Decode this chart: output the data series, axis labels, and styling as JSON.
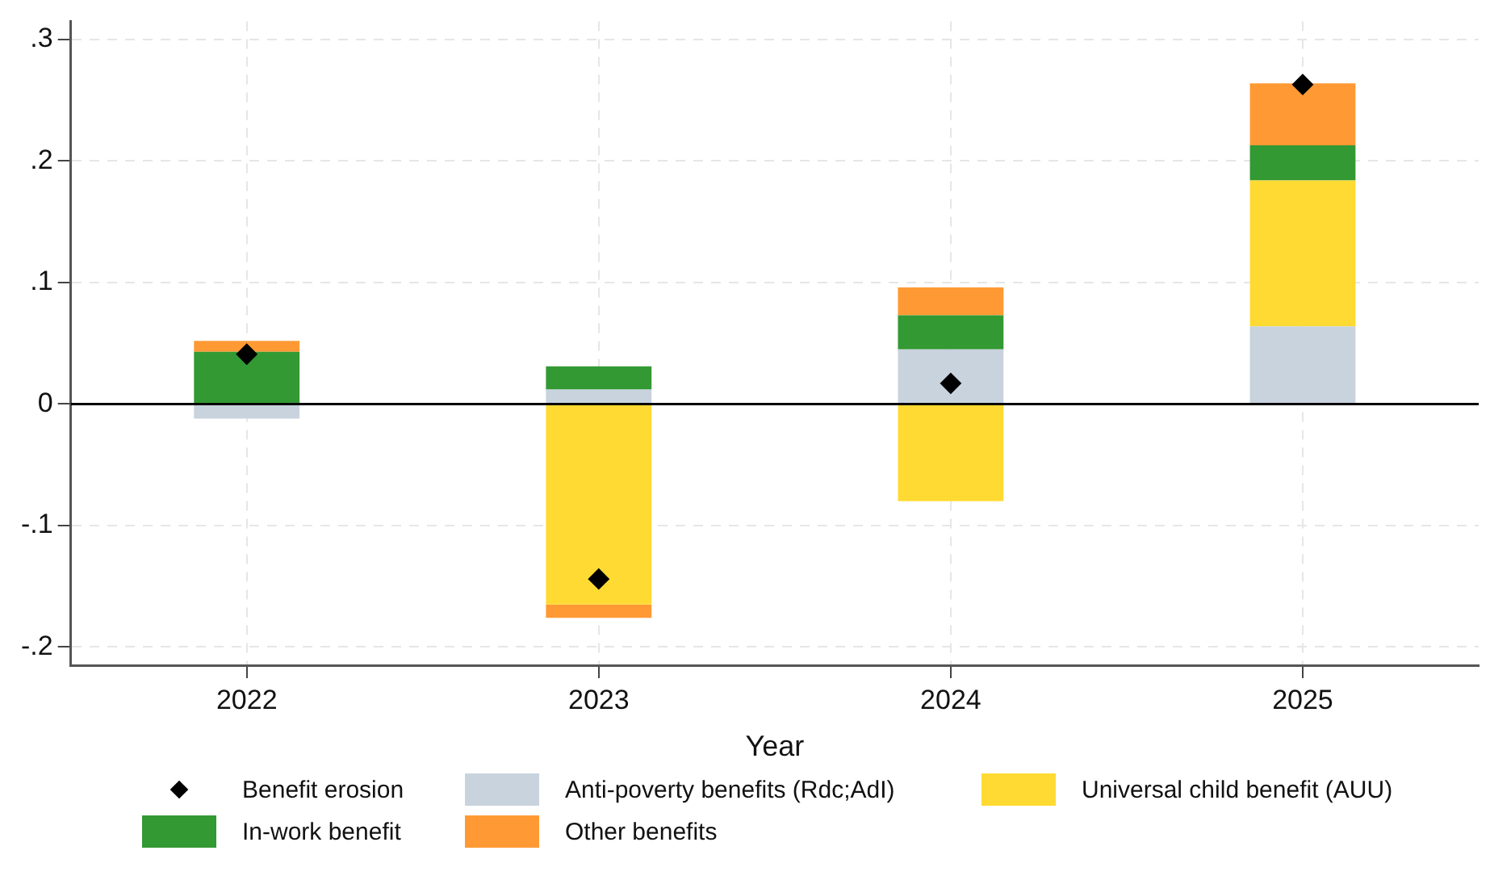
{
  "chart_data": {
    "type": "bar",
    "stacked": true,
    "xlabel": "Year",
    "categories": [
      "2022",
      "2023",
      "2024",
      "2025"
    ],
    "series": [
      {
        "name": "Benefit erosion",
        "type": "scatter",
        "marker": "diamond",
        "color": "#000000",
        "values": [
          0.041,
          -0.144,
          0.017,
          0.263
        ]
      },
      {
        "name": "Anti-poverty benefits (Rdc;AdI)",
        "color": "#c8d3de",
        "values": [
          -0.012,
          0.012,
          0.045,
          0.064
        ]
      },
      {
        "name": "Universal child benefit (AUU)",
        "color": "#ffda33",
        "values": [
          null,
          -0.165,
          -0.08,
          0.12
        ]
      },
      {
        "name": "In-work benefit",
        "color": "#339933",
        "values": [
          0.043,
          0.019,
          0.028,
          0.029
        ]
      },
      {
        "name": "Other benefits",
        "color": "#ff9933",
        "values": [
          0.009,
          -0.011,
          0.023,
          0.051
        ]
      }
    ],
    "ylim": [
      -0.215,
      0.315
    ],
    "yticks": [
      {
        "value": -0.2,
        "label": "-.2"
      },
      {
        "value": -0.1,
        "label": "-.1"
      },
      0,
      {
        "value": 0.1,
        "label": ".1"
      },
      {
        "value": 0.2,
        "label": ".2"
      },
      {
        "value": 0.3,
        "label": ".3"
      }
    ],
    "ref_lines": [
      {
        "axis": "y",
        "value": 0,
        "color": "#000000"
      }
    ],
    "grid": true,
    "legend": "bottom"
  }
}
